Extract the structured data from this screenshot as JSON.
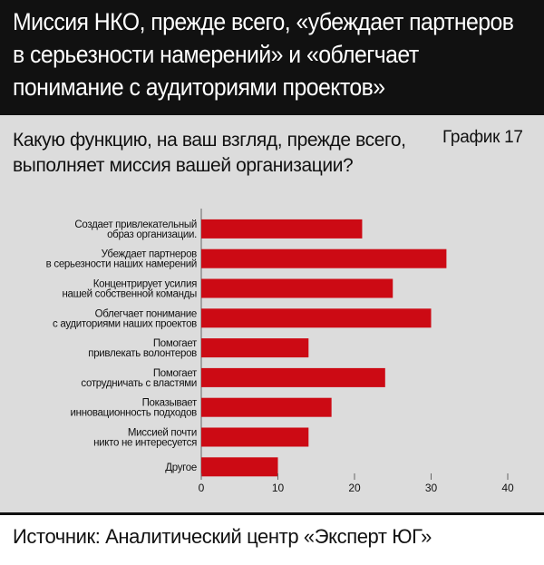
{
  "header": {
    "title": "Миссия НКО, прежде всего, «убеждает партнеров в серьезности намерений» и «облегчает понимание с аудиториями проектов»"
  },
  "question": "Какую функцию, на ваш взгляд, прежде всего, выполняет миссия вашей организации?",
  "chart_number": "График 17",
  "source": "Источник: Аналитический центр «Эксперт ЮГ»",
  "colors": {
    "header_bg": "#111111",
    "panel_bg": "#dcdcdc",
    "bar": "#cc0a14"
  },
  "chart_data": {
    "type": "bar",
    "orientation": "horizontal",
    "categories": [
      [
        "Создает привлекательный",
        "образ организации."
      ],
      [
        "Убеждает партнеров",
        "в серьезности наших намерений"
      ],
      [
        "Концентрирует усилия",
        "нашей собственной команды"
      ],
      [
        "Облегчает понимание",
        "с аудиториями наших проектов"
      ],
      [
        "Помогает",
        "привлекать волонтеров"
      ],
      [
        "Помогает",
        "сотрудничать с властями"
      ],
      [
        "Показывает",
        "инновационность подходов"
      ],
      [
        "Миссией почти",
        "никто не интересуется"
      ],
      [
        "Другое"
      ]
    ],
    "values": [
      21,
      32,
      25,
      30,
      14,
      24,
      17,
      14,
      10
    ],
    "xlim": [
      0,
      40
    ],
    "xticks": [
      0,
      10,
      20,
      30,
      40
    ],
    "grid": false
  }
}
